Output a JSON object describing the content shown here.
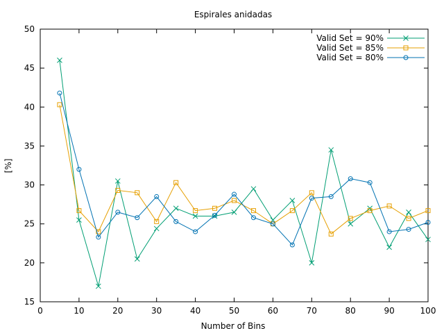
{
  "chart_data": {
    "type": "line",
    "title": "Espirales anidadas",
    "xlabel": "Number of Bins",
    "ylabel": "[%]",
    "xlim": [
      0,
      100
    ],
    "ylim": [
      15,
      50
    ],
    "x_ticks": [
      "0",
      "10",
      "20",
      "30",
      "40",
      "50",
      "60",
      "70",
      "80",
      "90",
      "100"
    ],
    "y_ticks": [
      "15",
      "20",
      "25",
      "30",
      "35",
      "40",
      "45",
      "50"
    ],
    "grid": false,
    "legend_position": "top-right",
    "x": [
      5,
      10,
      15,
      20,
      25,
      30,
      35,
      40,
      45,
      50,
      55,
      60,
      65,
      70,
      75,
      80,
      85,
      90,
      95,
      100
    ],
    "series": [
      {
        "name": "Valid Set = 90%",
        "color": "#009e73",
        "marker": "x",
        "values": [
          46.0,
          25.5,
          17.0,
          30.5,
          20.5,
          24.4,
          27.0,
          26.0,
          26.0,
          26.5,
          29.5,
          25.5,
          28.0,
          20.0,
          34.5,
          25.0,
          27.0,
          22.0,
          26.5,
          23.0
        ]
      },
      {
        "name": "Valid Set = 85%",
        "color": "#e69f00",
        "marker": "square",
        "values": [
          40.3,
          26.7,
          24.0,
          29.3,
          29.0,
          25.3,
          30.3,
          26.7,
          27.0,
          28.0,
          26.7,
          25.0,
          26.7,
          29.0,
          23.7,
          25.7,
          26.7,
          27.3,
          25.7,
          26.7
        ]
      },
      {
        "name": "Valid Set = 80%",
        "color": "#0072b2",
        "marker": "circle",
        "values": [
          41.8,
          32.0,
          23.3,
          26.5,
          25.8,
          28.5,
          25.3,
          24.0,
          26.1,
          28.8,
          25.8,
          25.0,
          22.3,
          28.3,
          28.5,
          30.8,
          30.3,
          24.0,
          24.3,
          25.2
        ]
      }
    ]
  }
}
